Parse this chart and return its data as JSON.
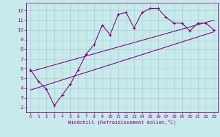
{
  "main_x": [
    0,
    1,
    2,
    3,
    4,
    5,
    6,
    7,
    8,
    9,
    10,
    11,
    12,
    13,
    14,
    15,
    16,
    17,
    18,
    19,
    20,
    21,
    22,
    23
  ],
  "main_y": [
    5.9,
    4.7,
    3.9,
    2.2,
    3.3,
    4.4,
    5.9,
    7.5,
    8.5,
    10.5,
    9.5,
    11.6,
    11.8,
    10.2,
    11.8,
    12.2,
    12.2,
    11.3,
    10.7,
    10.7,
    9.9,
    10.7,
    10.7,
    10.0
  ],
  "upper_line_x": [
    0,
    23
  ],
  "upper_line_y": [
    5.7,
    11.0
  ],
  "lower_line_x": [
    0,
    23
  ],
  "lower_line_y": [
    3.8,
    9.8
  ],
  "color": "#800080",
  "bg_color": "#c8eaea",
  "grid_color": "#a8d0d0",
  "xlabel": "Windchill (Refroidissement éolien,°C)",
  "ylabel_ticks": [
    2,
    3,
    4,
    5,
    6,
    7,
    8,
    9,
    10,
    11,
    12
  ],
  "xlim": [
    -0.5,
    23.5
  ],
  "ylim": [
    1.5,
    12.8
  ],
  "xticks": [
    0,
    1,
    2,
    3,
    4,
    5,
    6,
    7,
    8,
    9,
    10,
    11,
    12,
    13,
    14,
    15,
    16,
    17,
    18,
    19,
    20,
    21,
    22,
    23
  ]
}
